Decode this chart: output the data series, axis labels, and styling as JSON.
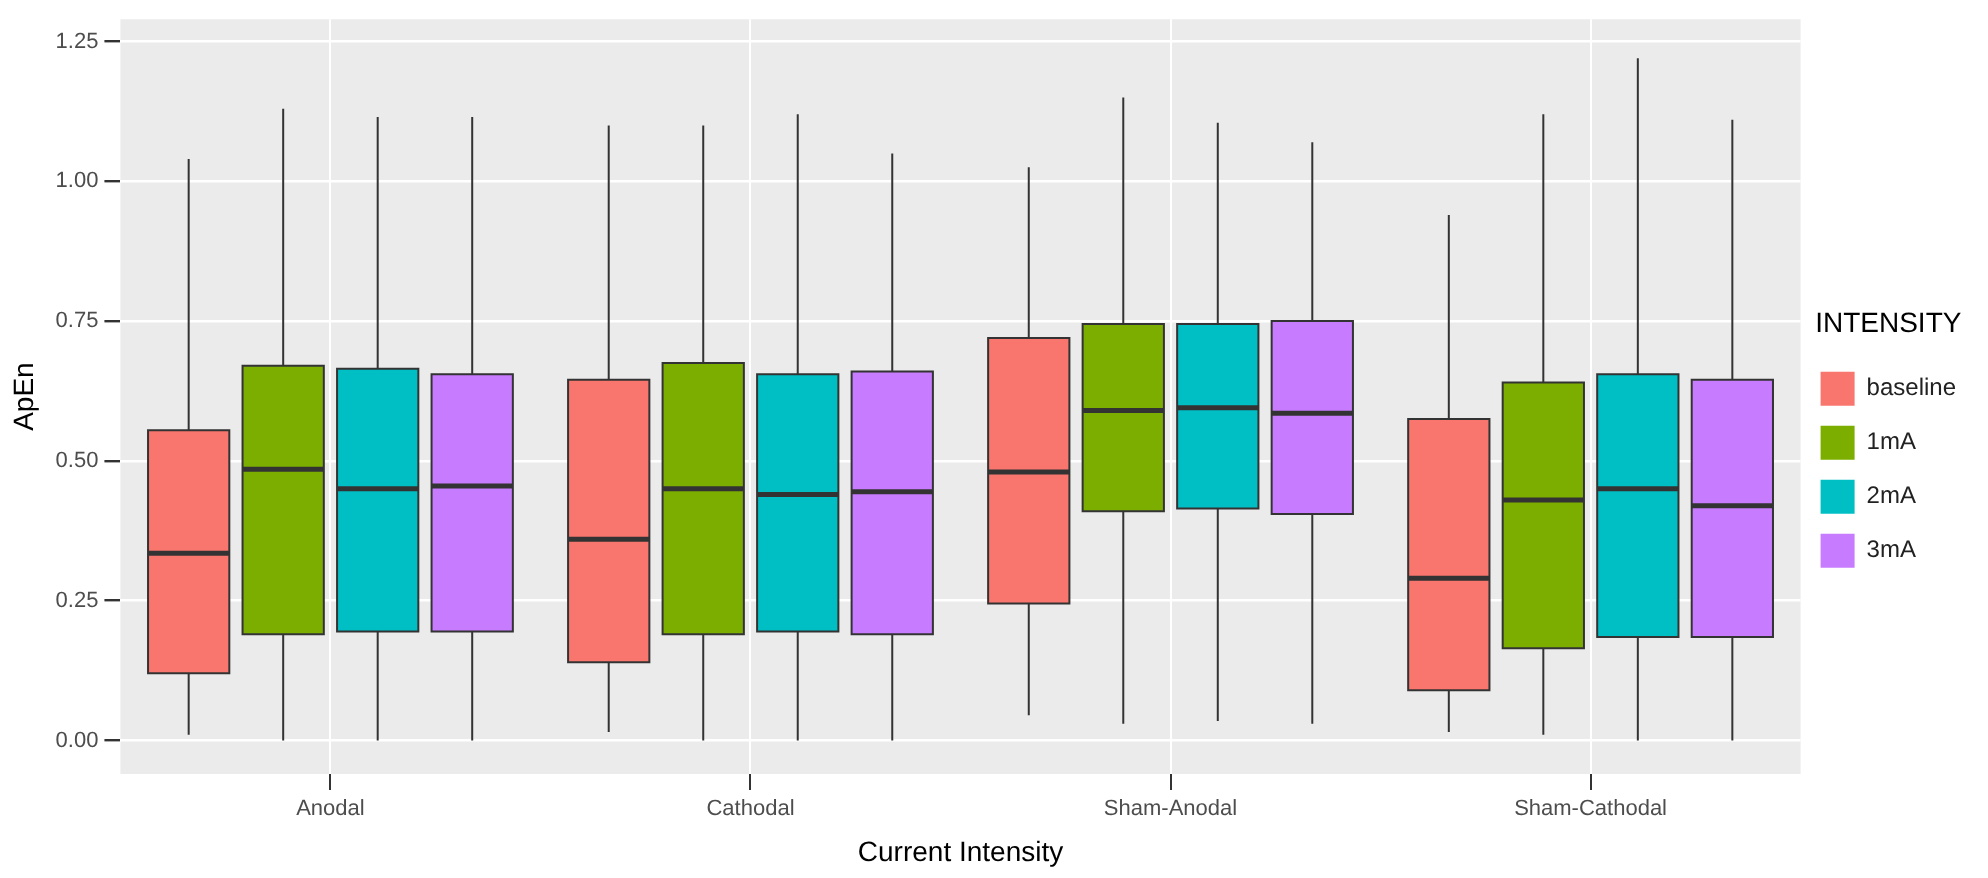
{
  "chart_data": {
    "type": "box",
    "xlabel": "Current Intensity",
    "ylabel": "ApEn",
    "legend_title": "INTENSITY",
    "legend": "right",
    "grid": true,
    "categories": [
      "Anodal",
      "Cathodal",
      "Sham-Anodal",
      "Sham-Cathodal"
    ],
    "ylim": [
      -0.06,
      1.29
    ],
    "yticks": [
      {
        "value": 0,
        "label": "0.00"
      },
      {
        "value": 0.25,
        "label": "0.25"
      },
      {
        "value": 0.5,
        "label": "0.50"
      },
      {
        "value": 0.75,
        "label": "0.75"
      },
      {
        "value": 1,
        "label": "1.00"
      },
      {
        "value": 1.25,
        "label": "1.25"
      }
    ],
    "series": [
      {
        "name": "baseline",
        "color": "#f8766d",
        "boxes": [
          {
            "low": 0.01,
            "q1": 0.12,
            "median": 0.335,
            "q3": 0.555,
            "high": 1.04
          },
          {
            "low": 0.015,
            "q1": 0.14,
            "median": 0.36,
            "q3": 0.645,
            "high": 1.1
          },
          {
            "low": 0.045,
            "q1": 0.245,
            "median": 0.48,
            "q3": 0.72,
            "high": 1.025
          },
          {
            "low": 0.015,
            "q1": 0.09,
            "median": 0.29,
            "q3": 0.575,
            "high": 0.94
          }
        ]
      },
      {
        "name": "1mA",
        "color": "#7cae00",
        "boxes": [
          {
            "low": 0,
            "q1": 0.19,
            "median": 0.485,
            "q3": 0.67,
            "high": 1.13
          },
          {
            "low": 0,
            "q1": 0.19,
            "median": 0.45,
            "q3": 0.675,
            "high": 1.1
          },
          {
            "low": 0.03,
            "q1": 0.41,
            "median": 0.59,
            "q3": 0.745,
            "high": 1.15
          },
          {
            "low": 0.01,
            "q1": 0.165,
            "median": 0.43,
            "q3": 0.64,
            "high": 1.12
          }
        ]
      },
      {
        "name": "2mA",
        "color": "#00bfc4",
        "boxes": [
          {
            "low": 0,
            "q1": 0.195,
            "median": 0.45,
            "q3": 0.665,
            "high": 1.115
          },
          {
            "low": 0,
            "q1": 0.195,
            "median": 0.44,
            "q3": 0.655,
            "high": 1.12
          },
          {
            "low": 0.035,
            "q1": 0.415,
            "median": 0.595,
            "q3": 0.745,
            "high": 1.105
          },
          {
            "low": 0,
            "q1": 0.185,
            "median": 0.45,
            "q3": 0.655,
            "high": 1.22
          }
        ]
      },
      {
        "name": "3mA",
        "color": "#c77cff",
        "boxes": [
          {
            "low": 0,
            "q1": 0.195,
            "median": 0.455,
            "q3": 0.655,
            "high": 1.115
          },
          {
            "low": 0,
            "q1": 0.19,
            "median": 0.445,
            "q3": 0.66,
            "high": 1.05
          },
          {
            "low": 0.03,
            "q1": 0.405,
            "median": 0.585,
            "q3": 0.75,
            "high": 1.07
          },
          {
            "low": 0,
            "q1": 0.185,
            "median": 0.42,
            "q3": 0.645,
            "high": 1.11
          }
        ]
      }
    ]
  }
}
